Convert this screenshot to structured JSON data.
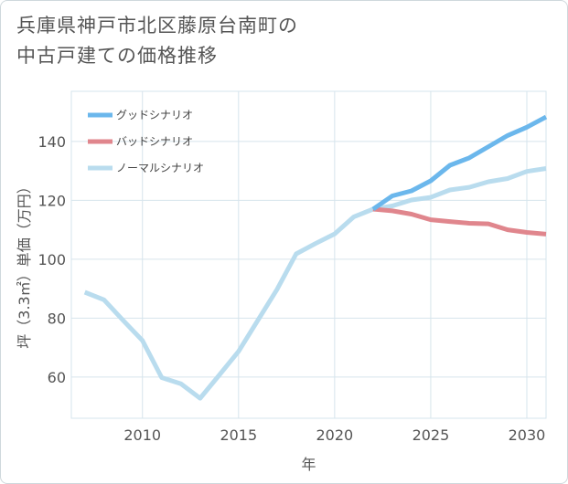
{
  "title": {
    "line1": "兵庫県神戸市北区藤原台南町の",
    "line2": "中古戸建ての価格推移"
  },
  "colors": {
    "good": "#6bb7ec",
    "bad": "#e0868d",
    "normal": "#b9dcee",
    "grid": "#d6e4ec"
  },
  "chart_data": {
    "type": "line",
    "title": "兵庫県神戸市北区藤原台南町の中古戸建ての価格推移",
    "xlabel": "年",
    "ylabel": "坪（3.3㎡）単価（万円）",
    "xlim": [
      2006.3,
      2031
    ],
    "ylim": [
      46,
      157
    ],
    "x_ticks": [
      "2010",
      "2015",
      "2020",
      "2025",
      "2030"
    ],
    "y_ticks": [
      "60",
      "80",
      "100",
      "120",
      "140"
    ],
    "grid": true,
    "legend_position": "top-left",
    "series": [
      {
        "name": "グッドシナリオ",
        "color_key": "good",
        "x": [
          2022,
          2023,
          2024,
          2025,
          2026,
          2027,
          2028,
          2029,
          2030,
          2031
        ],
        "y": [
          117,
          121.5,
          123.2,
          126.6,
          131.9,
          134.4,
          138.2,
          142,
          144.8,
          148.3
        ]
      },
      {
        "name": "バッドシナリオ",
        "color_key": "bad",
        "x": [
          2022,
          2023,
          2024,
          2025,
          2026,
          2027,
          2028,
          2029,
          2030,
          2031
        ],
        "y": [
          117,
          116.4,
          115.3,
          113.4,
          112.8,
          112.2,
          112,
          110,
          109.1,
          108.5
        ]
      },
      {
        "name": "ノーマルシナリオ",
        "color_key": "normal",
        "x": [
          2007,
          2008,
          2009,
          2010,
          2011,
          2012,
          2013,
          2014,
          2015,
          2016,
          2017,
          2018,
          2019,
          2020,
          2021,
          2022,
          2023,
          2024,
          2025,
          2026,
          2027,
          2028,
          2029,
          2030,
          2031
        ],
        "y": [
          88.8,
          86.2,
          79.2,
          72.4,
          59.8,
          57.7,
          52.8,
          60.7,
          68.7,
          79.2,
          89.7,
          101.8,
          105.3,
          108.6,
          114.4,
          117,
          118.1,
          120.1,
          121,
          123.5,
          124.4,
          126.3,
          127.4,
          129.8,
          130.8
        ]
      }
    ]
  }
}
